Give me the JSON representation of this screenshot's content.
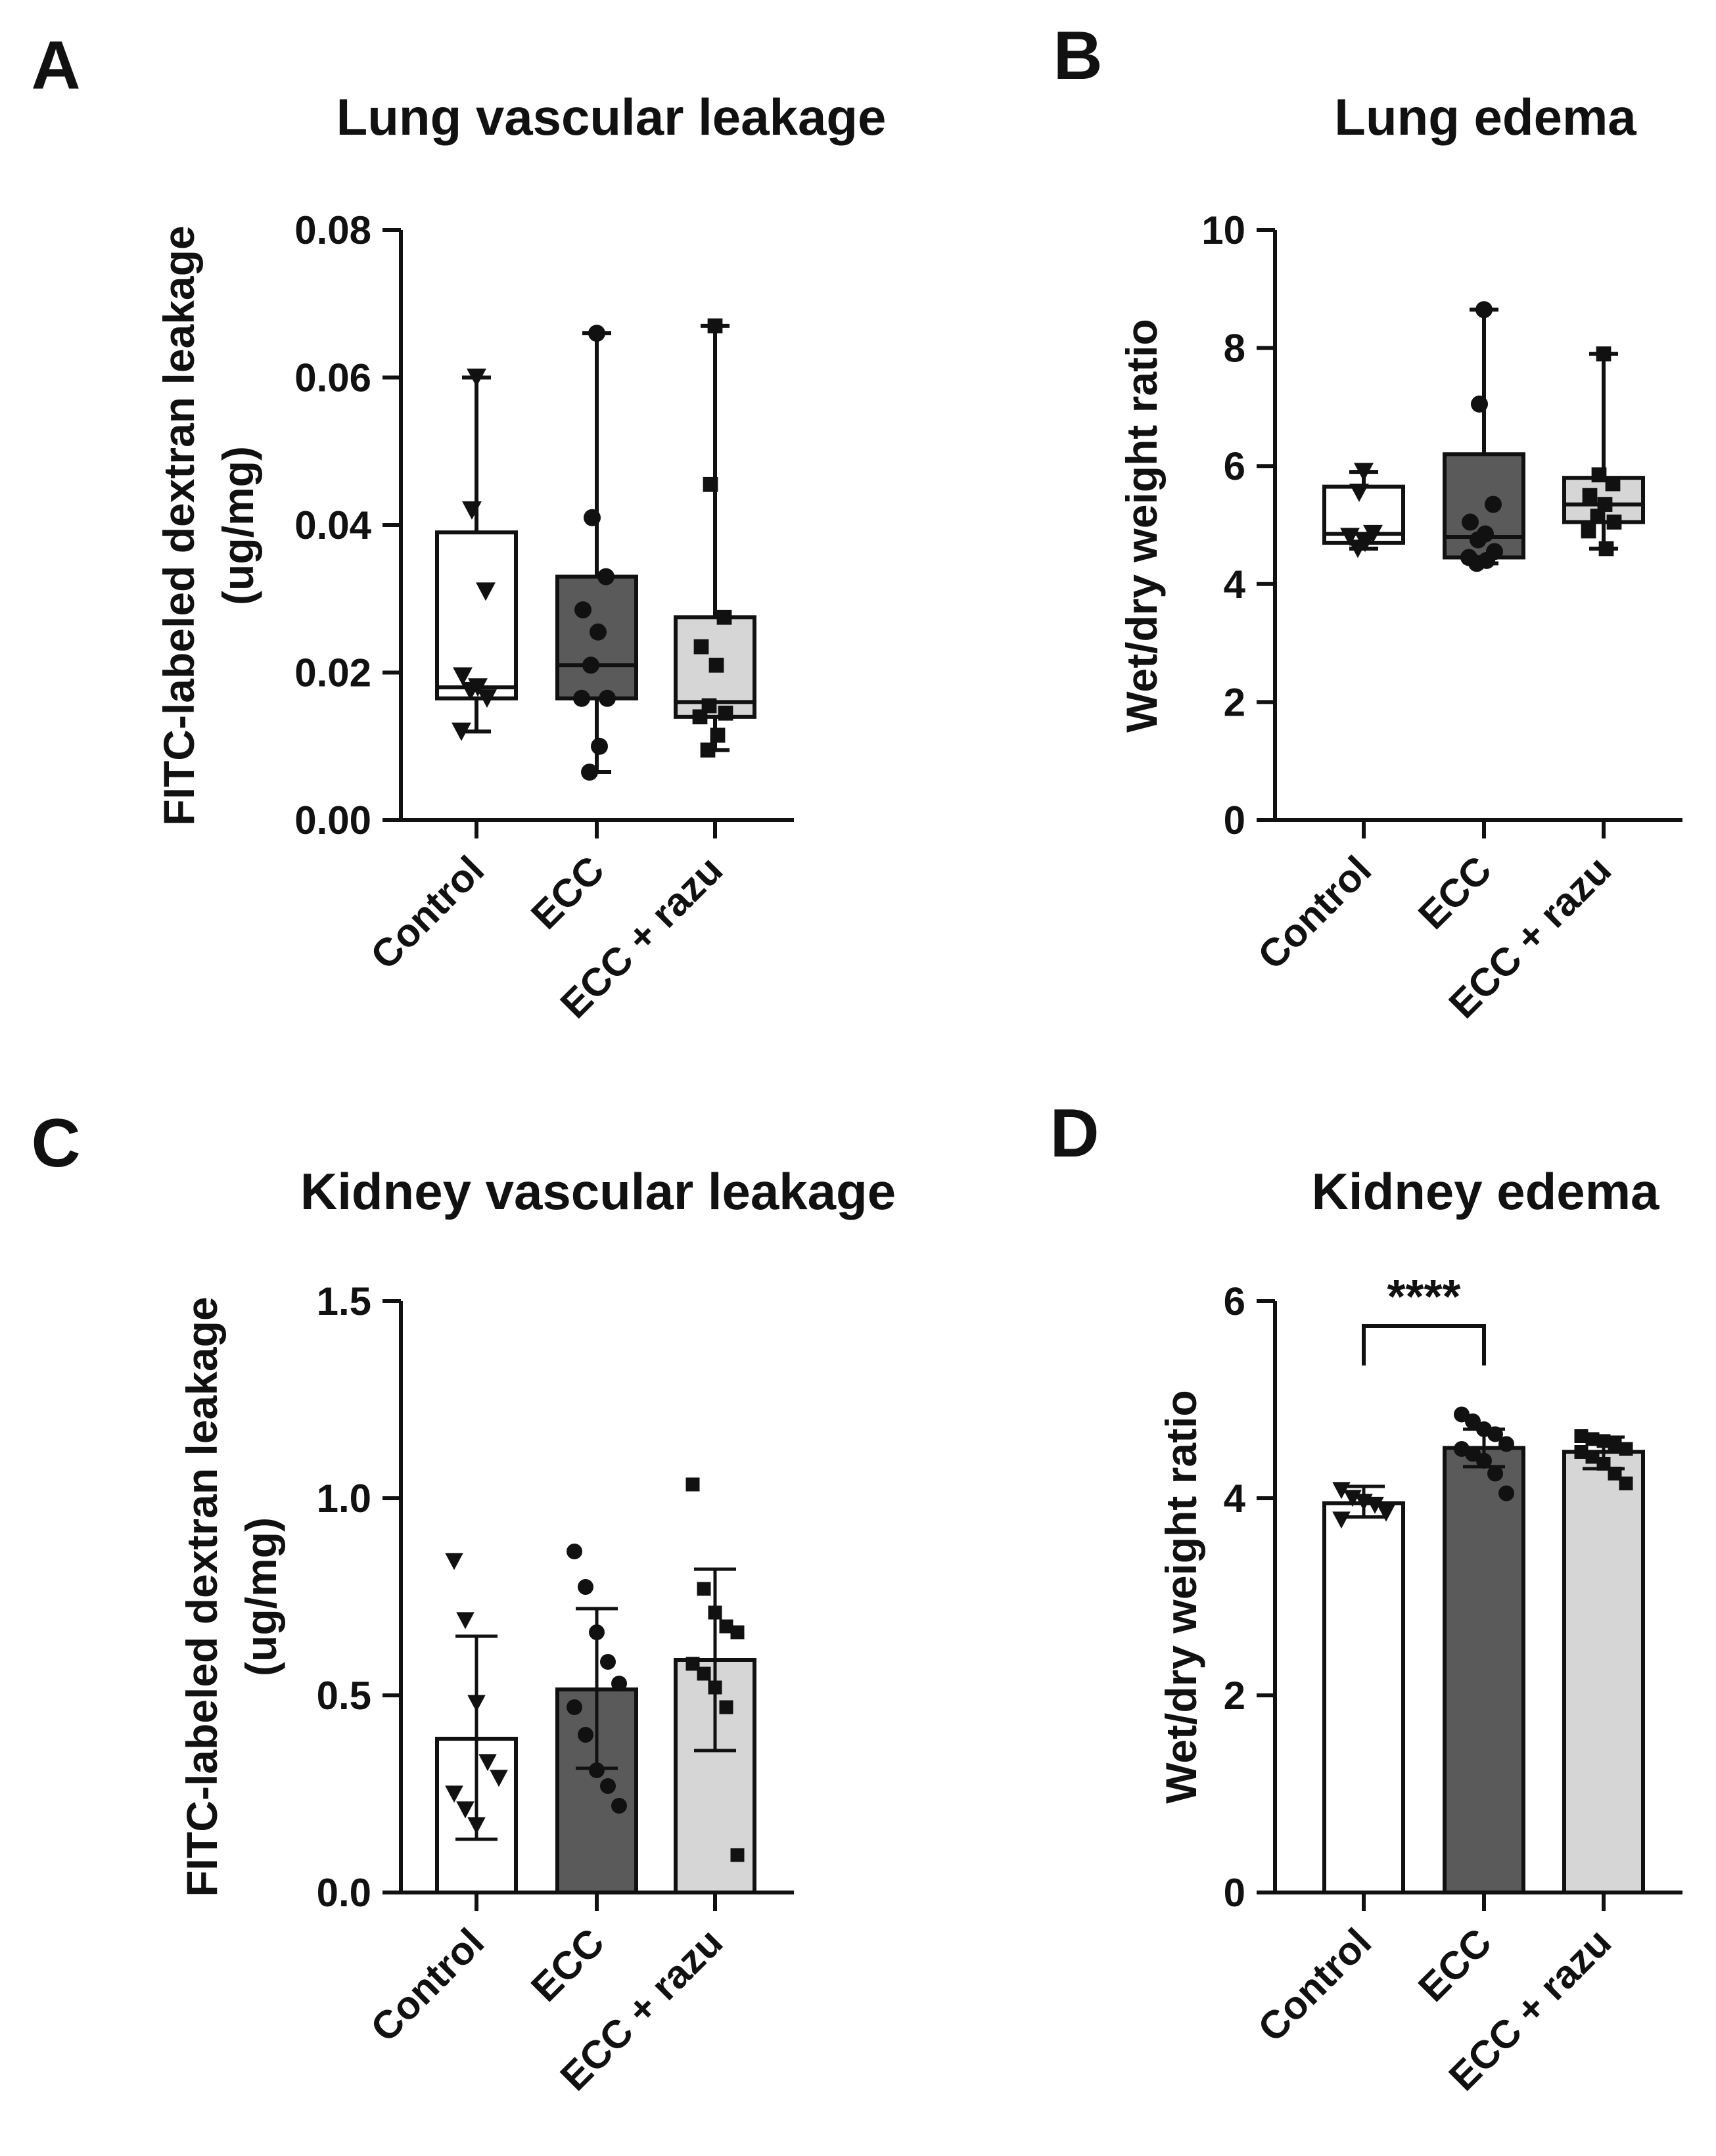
{
  "figure": {
    "panel_letters": [
      "A",
      "B",
      "C",
      "D"
    ]
  },
  "colors": {
    "Control": "#ffffff",
    "ECC": "#5a5a5a",
    "ECC + razu": "#d6d6d6",
    "ink": "#111111"
  },
  "chart_data": [
    {
      "panel": "A",
      "type": "box",
      "title": "Lung vascular leakage",
      "ylabel_lines": [
        "FITC-labeled dextran leakage",
        "(ug/mg)"
      ],
      "ylim": [
        0,
        0.08
      ],
      "yticks": [
        0,
        0.02,
        0.04,
        0.06,
        0.08
      ],
      "ytick_labels": [
        "0.00",
        "0.02",
        "0.04",
        "0.06",
        "0.08"
      ],
      "categories": [
        "Control",
        "ECC",
        "ECC + razu"
      ],
      "marker": [
        "triangle-down",
        "circle",
        "square"
      ],
      "boxes": [
        {
          "min": 0.012,
          "q1": 0.0165,
          "median": 0.018,
          "q3": 0.039,
          "max": 0.06,
          "points": [
            0.06,
            0.042,
            0.031,
            0.0195,
            0.018,
            0.0175,
            0.0165,
            0.012
          ]
        },
        {
          "min": 0.0065,
          "q1": 0.0165,
          "median": 0.021,
          "q3": 0.033,
          "max": 0.066,
          "points": [
            0.066,
            0.041,
            0.033,
            0.0285,
            0.0255,
            0.021,
            0.0165,
            0.0165,
            0.01,
            0.0065
          ]
        },
        {
          "min": 0.0095,
          "q1": 0.014,
          "median": 0.016,
          "q3": 0.0275,
          "max": 0.067,
          "points": [
            0.067,
            0.0455,
            0.0275,
            0.0235,
            0.021,
            0.0155,
            0.0145,
            0.014,
            0.0115,
            0.0095
          ]
        }
      ]
    },
    {
      "panel": "B",
      "type": "box",
      "title": "Lung edema",
      "ylabel_lines": [
        "Wet/dry weight ratio"
      ],
      "ylim": [
        0,
        10
      ],
      "yticks": [
        0,
        2,
        4,
        6,
        8,
        10
      ],
      "ytick_labels": [
        "0",
        "2",
        "4",
        "6",
        "8",
        "10"
      ],
      "categories": [
        "Control",
        "ECC",
        "ECC + razu"
      ],
      "marker": [
        "triangle-down",
        "circle",
        "square"
      ],
      "boxes": [
        {
          "min": 4.6,
          "q1": 4.7,
          "median": 4.85,
          "q3": 5.65,
          "max": 5.9,
          "points": [
            5.9,
            5.55,
            4.85,
            4.8,
            4.7,
            4.6
          ]
        },
        {
          "min": 4.35,
          "q1": 4.45,
          "median": 4.8,
          "q3": 6.2,
          "max": 8.65,
          "points": [
            8.65,
            7.05,
            5.35,
            5.05,
            4.85,
            4.75,
            4.55,
            4.45,
            4.4,
            4.35
          ]
        },
        {
          "min": 4.6,
          "q1": 5.05,
          "median": 5.35,
          "q3": 5.8,
          "max": 7.9,
          "points": [
            7.9,
            5.85,
            5.7,
            5.5,
            5.35,
            5.15,
            5.05,
            4.9,
            4.6
          ]
        }
      ]
    },
    {
      "panel": "C",
      "type": "bar",
      "title": "Kidney vascular leakage",
      "ylabel_lines": [
        "FITC-labeled dextran leakage",
        "(ug/mg)"
      ],
      "ylim": [
        0,
        1.5
      ],
      "yticks": [
        0,
        0.5,
        1.0,
        1.5
      ],
      "ytick_labels": [
        "0.0",
        "0.5",
        "1.0",
        "1.5"
      ],
      "categories": [
        "Control",
        "ECC",
        "ECC + razu"
      ],
      "marker": [
        "triangle-down",
        "circle",
        "square"
      ],
      "bars": [
        {
          "mean": 0.39,
          "err_low": 0.135,
          "err_high": 0.65,
          "points": [
            0.84,
            0.69,
            0.48,
            0.33,
            0.29,
            0.25,
            0.21,
            0.17
          ]
        },
        {
          "mean": 0.515,
          "err_low": 0.315,
          "err_high": 0.72,
          "points": [
            0.865,
            0.775,
            0.66,
            0.585,
            0.53,
            0.47,
            0.4,
            0.31,
            0.27,
            0.22
          ]
        },
        {
          "mean": 0.59,
          "err_low": 0.36,
          "err_high": 0.82,
          "points": [
            1.035,
            0.77,
            0.71,
            0.675,
            0.66,
            0.58,
            0.555,
            0.52,
            0.47,
            0.095
          ]
        }
      ]
    },
    {
      "panel": "D",
      "type": "bar",
      "title": "Kidney edema",
      "ylabel_lines": [
        "Wet/dry weight ratio"
      ],
      "ylim": [
        0,
        6
      ],
      "yticks": [
        0,
        2,
        4,
        6
      ],
      "ytick_labels": [
        "0",
        "2",
        "4",
        "6"
      ],
      "categories": [
        "Control",
        "ECC",
        "ECC + razu"
      ],
      "marker": [
        "triangle-down",
        "circle",
        "square"
      ],
      "bars": [
        {
          "mean": 3.95,
          "err_low": 3.81,
          "err_high": 4.12,
          "points": [
            4.08,
            4.0,
            3.96,
            3.93,
            3.85,
            3.78
          ]
        },
        {
          "mean": 4.51,
          "err_low": 4.32,
          "err_high": 4.7,
          "points": [
            4.85,
            4.78,
            4.7,
            4.65,
            4.55,
            4.5,
            4.45,
            4.38,
            4.25,
            4.05
          ]
        },
        {
          "mean": 4.47,
          "err_low": 4.3,
          "err_high": 4.62,
          "points": [
            4.63,
            4.6,
            4.58,
            4.55,
            4.5,
            4.47,
            4.42,
            4.35,
            4.25,
            4.15
          ]
        }
      ],
      "significance": {
        "from": "Control",
        "to": "ECC",
        "label": "****",
        "y": 6.0
      }
    }
  ]
}
